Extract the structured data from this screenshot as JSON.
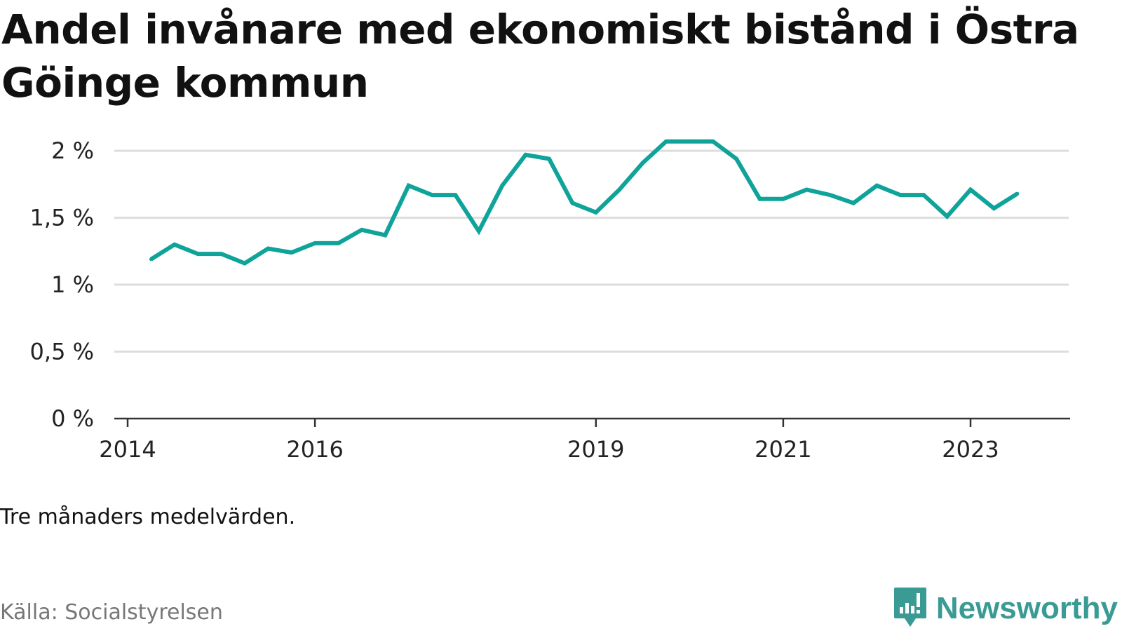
{
  "header": {
    "title": "Andel invånare med ekonomiskt bistånd i Östra Göinge kommun"
  },
  "footer": {
    "note": "Tre månaders medelvärden.",
    "source": "Källa: Socialstyrelsen",
    "brand": "Newsworthy"
  },
  "colors": {
    "line": "#0fa39a",
    "grid": "#dddddd",
    "axis": "#333333",
    "brand": "#3a9a94"
  },
  "icons": {
    "brand_logo": "newsworthy-logo-icon"
  },
  "chart_data": {
    "type": "line",
    "title": "Andel invånare med ekonomiskt bistånd i Östra Göinge kommun",
    "xlabel": "",
    "ylabel": "",
    "unit": "%",
    "ylim": [
      0,
      2.1
    ],
    "y_ticks": [
      {
        "value": 0,
        "label": "0 %"
      },
      {
        "value": 0.5,
        "label": "0,5 %"
      },
      {
        "value": 1,
        "label": "1 %"
      },
      {
        "value": 1.5,
        "label": "1,5 %"
      },
      {
        "value": 2,
        "label": "2 %"
      }
    ],
    "x_ticks": [
      {
        "value": "2014-01",
        "label": "2014"
      },
      {
        "value": "2016-01",
        "label": "2016"
      },
      {
        "value": "2019-01",
        "label": "2019"
      },
      {
        "value": "2021-01",
        "label": "2021"
      },
      {
        "value": "2023-01",
        "label": "2023"
      }
    ],
    "grid": true,
    "legend": "none",
    "series": [
      {
        "values": [
          {
            "x": "2014-04",
            "y": 1.19
          },
          {
            "x": "2014-07",
            "y": 1.3
          },
          {
            "x": "2014-10",
            "y": 1.23
          },
          {
            "x": "2015-01",
            "y": 1.23
          },
          {
            "x": "2015-04",
            "y": 1.16
          },
          {
            "x": "2015-07",
            "y": 1.27
          },
          {
            "x": "2015-10",
            "y": 1.24
          },
          {
            "x": "2016-01",
            "y": 1.31
          },
          {
            "x": "2016-04",
            "y": 1.31
          },
          {
            "x": "2016-07",
            "y": 1.41
          },
          {
            "x": "2016-10",
            "y": 1.37
          },
          {
            "x": "2017-01",
            "y": 1.74
          },
          {
            "x": "2017-04",
            "y": 1.67
          },
          {
            "x": "2017-07",
            "y": 1.67
          },
          {
            "x": "2017-10",
            "y": 1.4
          },
          {
            "x": "2018-01",
            "y": 1.74
          },
          {
            "x": "2018-04",
            "y": 1.97
          },
          {
            "x": "2018-07",
            "y": 1.94
          },
          {
            "x": "2018-10",
            "y": 1.61
          },
          {
            "x": "2019-01",
            "y": 1.54
          },
          {
            "x": "2019-04",
            "y": 1.71
          },
          {
            "x": "2019-07",
            "y": 1.91
          },
          {
            "x": "2019-10",
            "y": 2.07
          },
          {
            "x": "2020-01",
            "y": 2.07
          },
          {
            "x": "2020-04",
            "y": 2.07
          },
          {
            "x": "2020-07",
            "y": 1.94
          },
          {
            "x": "2020-10",
            "y": 1.64
          },
          {
            "x": "2021-01",
            "y": 1.64
          },
          {
            "x": "2021-04",
            "y": 1.71
          },
          {
            "x": "2021-07",
            "y": 1.67
          },
          {
            "x": "2021-10",
            "y": 1.61
          },
          {
            "x": "2022-01",
            "y": 1.74
          },
          {
            "x": "2022-04",
            "y": 1.67
          },
          {
            "x": "2022-07",
            "y": 1.67
          },
          {
            "x": "2022-10",
            "y": 1.51
          },
          {
            "x": "2023-01",
            "y": 1.71
          },
          {
            "x": "2023-04",
            "y": 1.57
          },
          {
            "x": "2023-07",
            "y": 1.68
          }
        ]
      }
    ]
  }
}
